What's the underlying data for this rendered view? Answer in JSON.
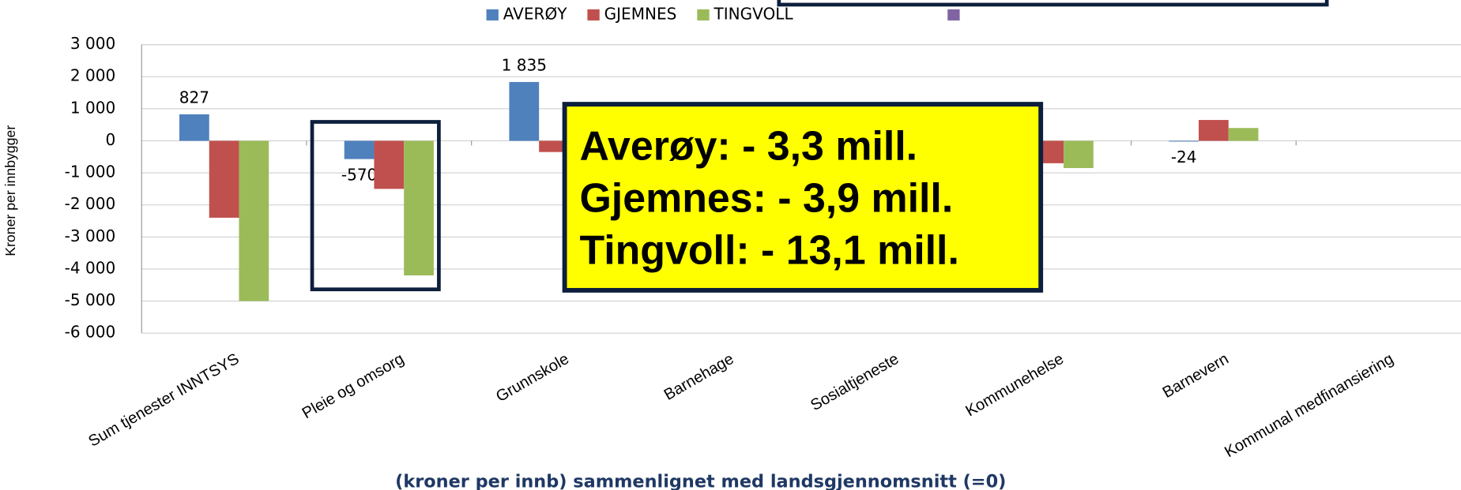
{
  "chart_data": {
    "type": "bar",
    "y_label": "Kroner per innbygger",
    "x_label": "(kroner per innb) sammenlignet med landsgjennomsnitt (=0)",
    "categories": [
      "Sum tjenester INNTSYS",
      "Pleie og omsorg",
      "Grunnskole",
      "Barnehage",
      "Sosialtjeneste",
      "Kommunehelse",
      "Barnevern",
      "Kommunal medfinansiering"
    ],
    "series": [
      {
        "name": "AVERØY",
        "color": "#4f81bd",
        "values": [
          827,
          -570,
          1835,
          null,
          null,
          null,
          -24,
          null
        ],
        "value_labels": [
          "827",
          "-570",
          "1 835",
          null,
          null,
          null,
          "-24",
          null
        ]
      },
      {
        "name": "GJEMNES",
        "color": "#c0504d",
        "values": [
          -2400,
          -1500,
          -350,
          null,
          null,
          -700,
          650,
          null
        ]
      },
      {
        "name": "TINGVOLL",
        "color": "#9bbb59",
        "values": [
          -5000,
          -4200,
          -250,
          null,
          null,
          -850,
          400,
          null
        ]
      }
    ],
    "ylim": [
      -6000,
      3000
    ],
    "yticks": [
      {
        "value": -6000,
        "label": "-6 000"
      },
      {
        "value": -5000,
        "label": "-5 000"
      },
      {
        "value": -4000,
        "label": "-4 000"
      },
      {
        "value": -3000,
        "label": "-3 000"
      },
      {
        "value": -2000,
        "label": "-2 000"
      },
      {
        "value": -1000,
        "label": "-1 000"
      },
      0,
      {
        "value": 1000,
        "label": "1 000"
      },
      {
        "value": 2000,
        "label": "2 000"
      },
      {
        "value": 3000,
        "label": "3 000"
      }
    ],
    "grid": true,
    "annotation": [
      "Averøy: - 3,3 mill.",
      "Gjemnes: - 3,9 mill.",
      "Tingvoll: - 13,1 mill."
    ]
  }
}
